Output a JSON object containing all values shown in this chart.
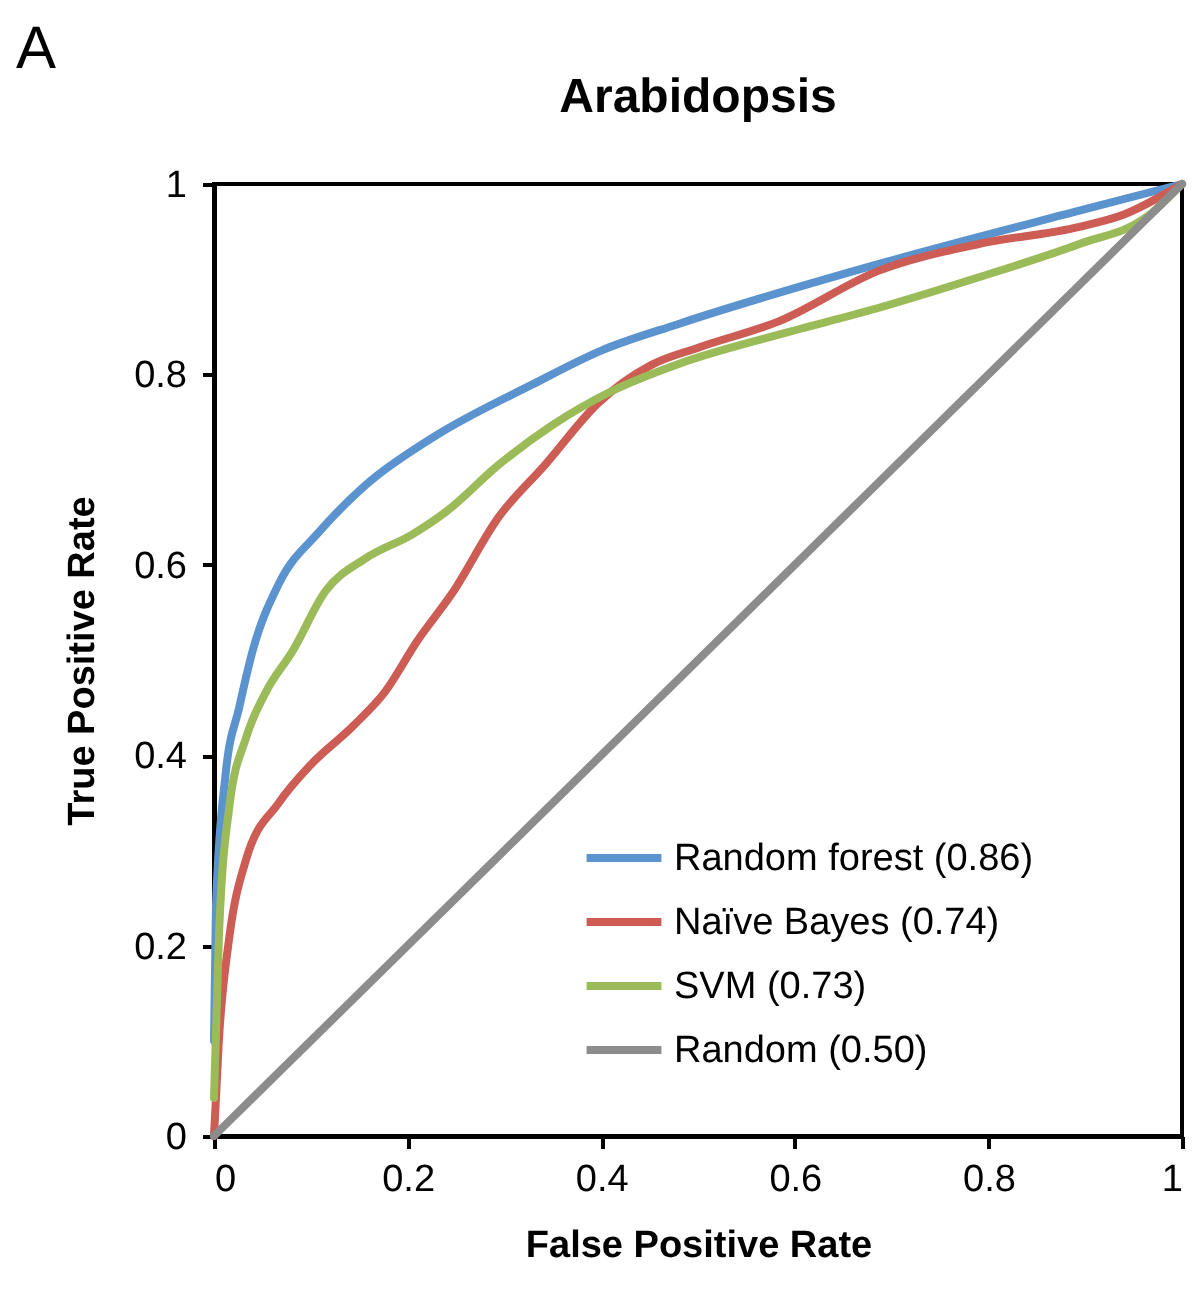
{
  "chart_data": {
    "type": "line",
    "title": "Arabidopsis",
    "xlabel": "False Positive Rate",
    "ylabel": "True Positive Rate",
    "annotations": [
      "A"
    ],
    "xlim": [
      0,
      1
    ],
    "ylim": [
      0,
      1
    ],
    "xticks": [
      0,
      0.2,
      0.4,
      0.6,
      0.8,
      1
    ],
    "yticks": [
      0,
      0.2,
      0.4,
      0.6,
      0.8,
      1
    ],
    "legend": "bottom right",
    "series": [
      {
        "name": "Random forest  (0.86)",
        "color": "#5b93cf",
        "x": [
          0,
          0.002,
          0.012,
          0.026,
          0.04,
          0.067,
          0.109,
          0.157,
          0.225,
          0.33,
          0.4,
          0.48,
          0.687,
          0.894,
          1
        ],
        "values": [
          0.1,
          0.24,
          0.38,
          0.45,
          0.51,
          0.58,
          0.635,
          0.684,
          0.733,
          0.79,
          0.825,
          0.853,
          0.916,
          0.972,
          1
        ]
      },
      {
        "name": "Naïve Bayes  (0.74)",
        "color": "#cd5c54",
        "x": [
          0,
          0.005,
          0.016,
          0.033,
          0.067,
          0.1,
          0.143,
          0.177,
          0.21,
          0.246,
          0.294,
          0.342,
          0.397,
          0.452,
          0.5,
          0.584,
          0.687,
          0.79,
          0.894,
          0.94,
          1
        ],
        "values": [
          0,
          0.1,
          0.21,
          0.29,
          0.35,
          0.39,
          0.43,
          0.467,
          0.52,
          0.57,
          0.65,
          0.705,
          0.77,
          0.81,
          0.828,
          0.856,
          0.909,
          0.937,
          0.955,
          0.968,
          1
        ]
      },
      {
        "name": "SVM  (0.73)",
        "color": "#9bbb59",
        "x": [
          0,
          0.005,
          0.016,
          0.033,
          0.054,
          0.081,
          0.115,
          0.157,
          0.205,
          0.24,
          0.294,
          0.35,
          0.41,
          0.48,
          0.584,
          0.687,
          0.79,
          0.894,
          0.963,
          1
        ],
        "values": [
          0.04,
          0.207,
          0.347,
          0.418,
          0.467,
          0.509,
          0.572,
          0.607,
          0.632,
          0.656,
          0.705,
          0.747,
          0.782,
          0.811,
          0.842,
          0.87,
          0.902,
          0.937,
          0.965,
          1
        ]
      },
      {
        "name": "Random   (0.50)",
        "color": "#8c8c8c",
        "x": [
          0,
          1
        ],
        "values": [
          0,
          1
        ]
      }
    ]
  }
}
